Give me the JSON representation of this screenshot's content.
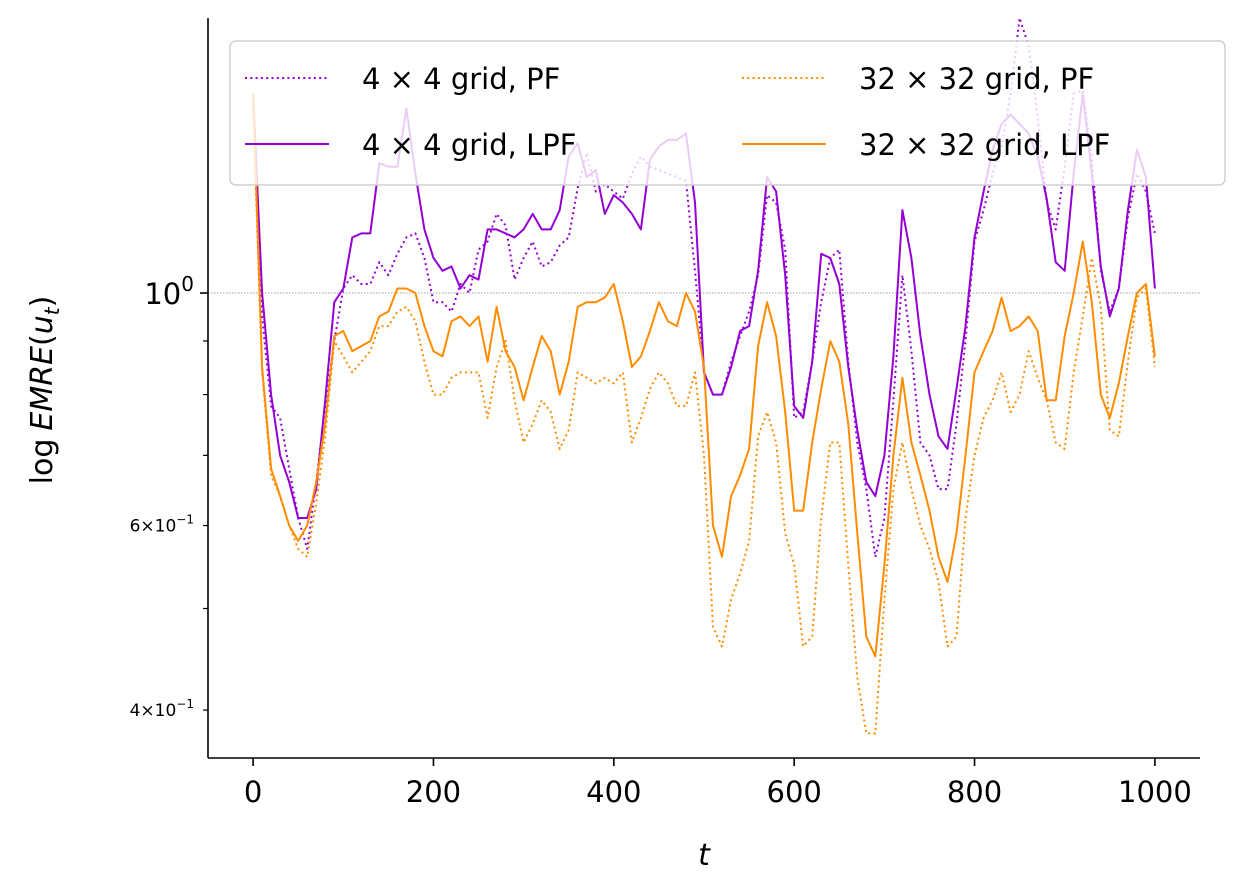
{
  "chart_data": {
    "type": "line",
    "title": "",
    "xlabel": "t",
    "ylabel": "log EMRE(u_t)",
    "yscale": "log",
    "xlim": [
      -50,
      1050
    ],
    "ylim": [
      0.36,
      1.83
    ],
    "x_ticks": [
      "0",
      "200",
      "400",
      "600",
      "800",
      "1000"
    ],
    "y_ticks": [
      {
        "value": 1.0,
        "label": "10^0",
        "base": "10",
        "exponent": "0"
      },
      {
        "value": 0.6,
        "label": "6×10^-1",
        "mantissa": "6",
        "times": "×",
        "base": "10",
        "exponent": "−1"
      },
      {
        "value": 0.4,
        "label": "4×10^-1",
        "mantissa": "4",
        "times": "×",
        "base": "10",
        "exponent": "−1"
      }
    ],
    "reference_line": 1.0,
    "legend_position": "top",
    "x": [
      0,
      10,
      20,
      30,
      40,
      50,
      60,
      70,
      80,
      90,
      100,
      110,
      120,
      130,
      140,
      150,
      160,
      170,
      180,
      190,
      200,
      210,
      220,
      230,
      240,
      250,
      260,
      270,
      280,
      290,
      300,
      310,
      320,
      330,
      340,
      350,
      360,
      370,
      380,
      390,
      400,
      410,
      420,
      430,
      440,
      450,
      460,
      470,
      480,
      490,
      500,
      510,
      520,
      530,
      540,
      550,
      560,
      570,
      580,
      590,
      600,
      610,
      620,
      630,
      640,
      650,
      660,
      670,
      680,
      690,
      700,
      710,
      720,
      730,
      740,
      750,
      760,
      770,
      780,
      790,
      800,
      810,
      820,
      830,
      840,
      850,
      860,
      870,
      880,
      890,
      900,
      910,
      920,
      930,
      940,
      950,
      960,
      970,
      980,
      990,
      1000
    ],
    "series": [
      {
        "name": "4 × 4 grid, PF",
        "color": "#9400d3",
        "dash": "dotted",
        "values": [
          1.55,
          0.95,
          0.78,
          0.76,
          0.68,
          0.61,
          0.57,
          0.66,
          0.78,
          0.9,
          1.01,
          1.04,
          1.02,
          1.02,
          1.07,
          1.04,
          1.09,
          1.13,
          1.14,
          1.08,
          0.98,
          0.98,
          0.96,
          1.02,
          1.0,
          1.1,
          1.12,
          1.19,
          1.16,
          1.03,
          1.08,
          1.12,
          1.06,
          1.07,
          1.11,
          1.13,
          1.26,
          1.36,
          1.25,
          1.27,
          1.25,
          1.23,
          1.3,
          1.35,
          1.32,
          1.31,
          1.3,
          1.29,
          1.28,
          1.05,
          0.84,
          0.8,
          0.8,
          0.86,
          0.91,
          0.96,
          1.04,
          1.24,
          1.22,
          1.1,
          0.76,
          0.77,
          0.86,
          0.98,
          1.08,
          1.1,
          0.86,
          0.72,
          0.65,
          0.56,
          0.61,
          0.79,
          1.04,
          0.88,
          0.72,
          0.7,
          0.65,
          0.65,
          0.75,
          0.9,
          1.12,
          1.2,
          1.3,
          1.38,
          1.55,
          1.83,
          1.72,
          1.47,
          1.22,
          1.15,
          1.32,
          1.55,
          1.56,
          1.35,
          1.05,
          0.96,
          1.01,
          1.18,
          1.3,
          1.25,
          1.14
        ]
      },
      {
        "name": "4 × 4 grid, LPF",
        "color": "#9400d3",
        "dash": "solid",
        "values": [
          1.55,
          1.0,
          0.8,
          0.7,
          0.66,
          0.61,
          0.61,
          0.65,
          0.79,
          0.98,
          1.01,
          1.13,
          1.14,
          1.14,
          1.33,
          1.32,
          1.32,
          1.5,
          1.3,
          1.15,
          1.08,
          1.05,
          1.06,
          1.01,
          1.04,
          1.03,
          1.15,
          1.15,
          1.14,
          1.13,
          1.15,
          1.19,
          1.15,
          1.15,
          1.2,
          1.35,
          1.39,
          1.29,
          1.31,
          1.19,
          1.24,
          1.22,
          1.19,
          1.15,
          1.34,
          1.38,
          1.4,
          1.4,
          1.42,
          1.22,
          0.84,
          0.8,
          0.8,
          0.85,
          0.92,
          0.93,
          1.05,
          1.29,
          1.25,
          1.04,
          0.78,
          0.76,
          0.86,
          1.09,
          1.08,
          1.02,
          0.85,
          0.74,
          0.66,
          0.64,
          0.7,
          0.87,
          1.2,
          1.08,
          0.91,
          0.8,
          0.73,
          0.71,
          0.81,
          0.93,
          1.13,
          1.25,
          1.37,
          1.45,
          1.48,
          1.45,
          1.42,
          1.35,
          1.23,
          1.07,
          1.05,
          1.3,
          1.55,
          1.3,
          1.06,
          0.95,
          1.01,
          1.2,
          1.37,
          1.29,
          1.01
        ]
      },
      {
        "name": "32 × 32 grid, PF",
        "color": "#ff8c00",
        "dash": "dotted",
        "values": [
          1.5,
          0.84,
          0.67,
          0.64,
          0.6,
          0.57,
          0.56,
          0.63,
          0.73,
          0.9,
          0.87,
          0.84,
          0.86,
          0.88,
          0.93,
          0.93,
          0.96,
          0.97,
          0.94,
          0.86,
          0.8,
          0.8,
          0.83,
          0.84,
          0.84,
          0.84,
          0.76,
          0.85,
          0.9,
          0.79,
          0.72,
          0.75,
          0.79,
          0.77,
          0.71,
          0.74,
          0.84,
          0.83,
          0.82,
          0.83,
          0.82,
          0.84,
          0.72,
          0.76,
          0.81,
          0.84,
          0.82,
          0.78,
          0.78,
          0.84,
          0.7,
          0.48,
          0.46,
          0.51,
          0.54,
          0.58,
          0.73,
          0.77,
          0.72,
          0.59,
          0.55,
          0.46,
          0.47,
          0.61,
          0.72,
          0.72,
          0.55,
          0.43,
          0.38,
          0.38,
          0.51,
          0.65,
          0.72,
          0.65,
          0.6,
          0.57,
          0.53,
          0.46,
          0.47,
          0.61,
          0.7,
          0.76,
          0.79,
          0.84,
          0.77,
          0.8,
          0.88,
          0.83,
          0.79,
          0.72,
          0.71,
          0.84,
          0.95,
          1.08,
          0.97,
          0.74,
          0.73,
          0.86,
          0.99,
          1.01,
          0.85
        ]
      },
      {
        "name": "32 × 32 grid, LPF",
        "color": "#ff8c00",
        "dash": "solid",
        "values": [
          1.55,
          0.85,
          0.68,
          0.64,
          0.6,
          0.58,
          0.6,
          0.66,
          0.75,
          0.91,
          0.92,
          0.88,
          0.89,
          0.9,
          0.95,
          0.96,
          1.01,
          1.01,
          1.0,
          0.93,
          0.88,
          0.87,
          0.94,
          0.95,
          0.93,
          0.95,
          0.86,
          0.97,
          0.88,
          0.85,
          0.79,
          0.85,
          0.91,
          0.88,
          0.8,
          0.86,
          0.97,
          0.98,
          0.98,
          0.99,
          1.02,
          0.94,
          0.85,
          0.87,
          0.92,
          0.98,
          0.94,
          0.93,
          1.0,
          0.96,
          0.85,
          0.6,
          0.56,
          0.64,
          0.67,
          0.71,
          0.89,
          0.98,
          0.91,
          0.77,
          0.62,
          0.62,
          0.72,
          0.81,
          0.9,
          0.86,
          0.75,
          0.59,
          0.47,
          0.45,
          0.55,
          0.7,
          0.83,
          0.72,
          0.67,
          0.62,
          0.56,
          0.53,
          0.59,
          0.7,
          0.84,
          0.88,
          0.92,
          0.99,
          0.92,
          0.93,
          0.95,
          0.92,
          0.79,
          0.79,
          0.91,
          1.0,
          1.12,
          0.98,
          0.8,
          0.76,
          0.82,
          0.91,
          1.0,
          1.02,
          0.87
        ]
      }
    ]
  }
}
